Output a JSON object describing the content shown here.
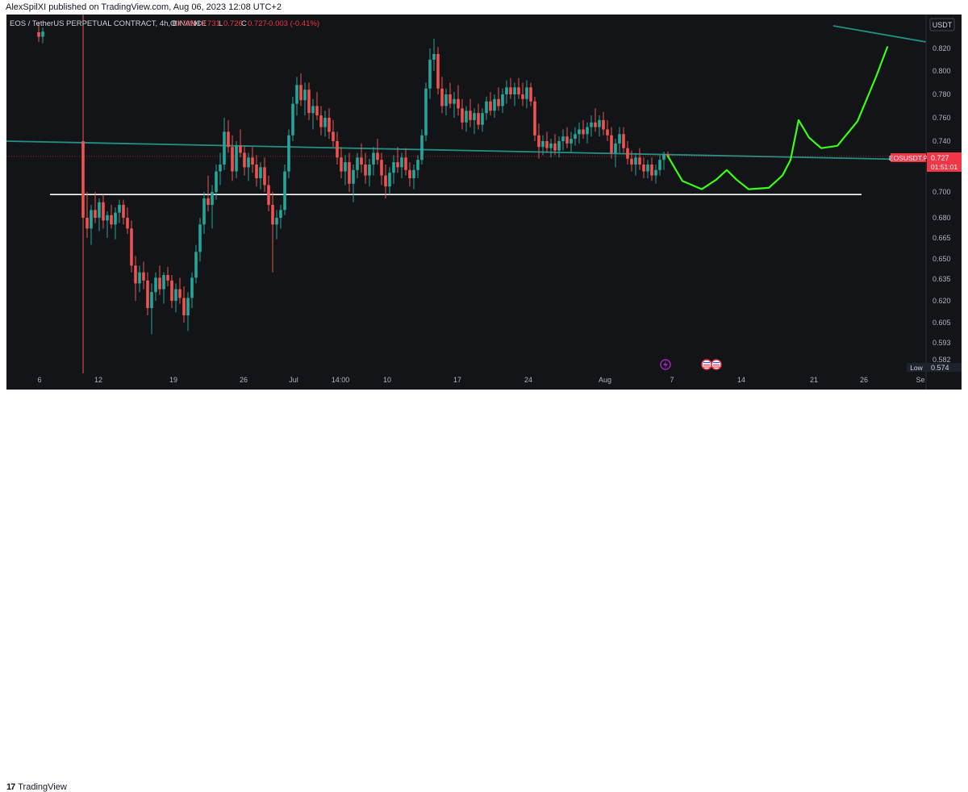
{
  "publish_line": "AlexSpilXI published on TradingView.com, Aug 06, 2023 12:08 UTC+2",
  "footer": {
    "brand": "TradingView",
    "logo_icon": "tradingview-logo-icon"
  },
  "chart_data": {
    "type": "candlestick",
    "symbol_line": {
      "title": "EOS / TetherUS PERPETUAL CONTRACT, 4h, BINANCE",
      "open_label": "O",
      "open": "0.729",
      "high_label": "H",
      "high": "0.731",
      "low_label": "L",
      "low": "0.726",
      "close_label": "C",
      "close": "0.727",
      "change": "-0.003 (-0.41%)"
    },
    "currency_label": "USDT",
    "price_axis_ticks": [
      "0.820",
      "0.800",
      "0.780",
      "0.760",
      "0.740",
      "0.720",
      "0.700",
      "0.680",
      "0.665",
      "0.650",
      "0.635",
      "0.620",
      "0.605",
      "0.593",
      "0.582"
    ],
    "time_axis_ticks": [
      "6",
      "12",
      "19",
      "26",
      "Jul",
      "14:00",
      "10",
      "17",
      "24",
      "Aug",
      "7",
      "14",
      "21",
      "26",
      "Se"
    ],
    "current_price_tag": {
      "symbol": "EOSUSDT.P",
      "price": "0.727",
      "countdown": "01:51:01"
    },
    "low_tag": {
      "label": "Low",
      "value": "0.574"
    },
    "support_level": 0.698,
    "trendline_start": [
      0,
      0.74
    ],
    "trendline_end": [
      1140,
      0.724
    ],
    "upper_trendline_start": [
      1025,
      0.855
    ],
    "upper_trendline_end": [
      1140,
      0.83
    ],
    "projection_path": [
      [
        820,
        0.727
      ],
      [
        838,
        0.708
      ],
      [
        862,
        0.702
      ],
      [
        880,
        0.709
      ],
      [
        893,
        0.716
      ],
      [
        905,
        0.709
      ],
      [
        920,
        0.702
      ],
      [
        945,
        0.703
      ],
      [
        962,
        0.712
      ],
      [
        972,
        0.724
      ],
      [
        982,
        0.758
      ],
      [
        995,
        0.743
      ],
      [
        1010,
        0.734
      ],
      [
        1030,
        0.736
      ],
      [
        1055,
        0.757
      ],
      [
        1078,
        0.795
      ],
      [
        1092,
        0.822
      ]
    ],
    "candles": [
      {
        "x": 40,
        "o": 0.845,
        "h": 0.86,
        "l": 0.83,
        "c": 0.838
      },
      {
        "x": 45,
        "o": 0.838,
        "h": 0.852,
        "l": 0.828,
        "c": 0.846
      },
      {
        "x": 95,
        "o": 0.74,
        "h": 0.9,
        "l": 0.57,
        "c": 0.68
      },
      {
        "x": 100,
        "o": 0.68,
        "h": 0.7,
        "l": 0.665,
        "c": 0.672
      },
      {
        "x": 105,
        "o": 0.672,
        "h": 0.69,
        "l": 0.66,
        "c": 0.686
      },
      {
        "x": 110,
        "o": 0.686,
        "h": 0.7,
        "l": 0.676,
        "c": 0.68
      },
      {
        "x": 115,
        "o": 0.68,
        "h": 0.695,
        "l": 0.67,
        "c": 0.692
      },
      {
        "x": 120,
        "o": 0.692,
        "h": 0.698,
        "l": 0.672,
        "c": 0.678
      },
      {
        "x": 125,
        "o": 0.678,
        "h": 0.685,
        "l": 0.665,
        "c": 0.682
      },
      {
        "x": 130,
        "o": 0.682,
        "h": 0.69,
        "l": 0.672,
        "c": 0.675
      },
      {
        "x": 135,
        "o": 0.675,
        "h": 0.688,
        "l": 0.664,
        "c": 0.684
      },
      {
        "x": 140,
        "o": 0.684,
        "h": 0.694,
        "l": 0.676,
        "c": 0.69
      },
      {
        "x": 145,
        "o": 0.69,
        "h": 0.694,
        "l": 0.675,
        "c": 0.68
      },
      {
        "x": 150,
        "o": 0.68,
        "h": 0.688,
        "l": 0.668,
        "c": 0.672
      },
      {
        "x": 155,
        "o": 0.672,
        "h": 0.678,
        "l": 0.64,
        "c": 0.645
      },
      {
        "x": 160,
        "o": 0.645,
        "h": 0.652,
        "l": 0.62,
        "c": 0.632
      },
      {
        "x": 165,
        "o": 0.632,
        "h": 0.645,
        "l": 0.626,
        "c": 0.64
      },
      {
        "x": 170,
        "o": 0.64,
        "h": 0.648,
        "l": 0.628,
        "c": 0.634
      },
      {
        "x": 175,
        "o": 0.634,
        "h": 0.64,
        "l": 0.61,
        "c": 0.615
      },
      {
        "x": 180,
        "o": 0.615,
        "h": 0.632,
        "l": 0.598,
        "c": 0.626
      },
      {
        "x": 185,
        "o": 0.626,
        "h": 0.64,
        "l": 0.62,
        "c": 0.636
      },
      {
        "x": 190,
        "o": 0.636,
        "h": 0.645,
        "l": 0.624,
        "c": 0.628
      },
      {
        "x": 195,
        "o": 0.628,
        "h": 0.64,
        "l": 0.618,
        "c": 0.638
      },
      {
        "x": 200,
        "o": 0.638,
        "h": 0.644,
        "l": 0.63,
        "c": 0.634
      },
      {
        "x": 205,
        "o": 0.634,
        "h": 0.638,
        "l": 0.615,
        "c": 0.62
      },
      {
        "x": 210,
        "o": 0.62,
        "h": 0.632,
        "l": 0.612,
        "c": 0.628
      },
      {
        "x": 215,
        "o": 0.628,
        "h": 0.636,
        "l": 0.618,
        "c": 0.622
      },
      {
        "x": 220,
        "o": 0.622,
        "h": 0.63,
        "l": 0.605,
        "c": 0.61
      },
      {
        "x": 225,
        "o": 0.61,
        "h": 0.626,
        "l": 0.6,
        "c": 0.622
      },
      {
        "x": 230,
        "o": 0.622,
        "h": 0.64,
        "l": 0.615,
        "c": 0.636
      },
      {
        "x": 235,
        "o": 0.636,
        "h": 0.66,
        "l": 0.632,
        "c": 0.655
      },
      {
        "x": 240,
        "o": 0.655,
        "h": 0.68,
        "l": 0.648,
        "c": 0.675
      },
      {
        "x": 245,
        "o": 0.675,
        "h": 0.7,
        "l": 0.668,
        "c": 0.695
      },
      {
        "x": 250,
        "o": 0.695,
        "h": 0.712,
        "l": 0.685,
        "c": 0.69
      },
      {
        "x": 255,
        "o": 0.69,
        "h": 0.705,
        "l": 0.672,
        "c": 0.7
      },
      {
        "x": 260,
        "o": 0.7,
        "h": 0.72,
        "l": 0.694,
        "c": 0.715
      },
      {
        "x": 265,
        "o": 0.715,
        "h": 0.73,
        "l": 0.705,
        "c": 0.72
      },
      {
        "x": 270,
        "o": 0.72,
        "h": 0.76,
        "l": 0.716,
        "c": 0.748
      },
      {
        "x": 275,
        "o": 0.748,
        "h": 0.758,
        "l": 0.73,
        "c": 0.735
      },
      {
        "x": 280,
        "o": 0.735,
        "h": 0.745,
        "l": 0.708,
        "c": 0.715
      },
      {
        "x": 285,
        "o": 0.715,
        "h": 0.74,
        "l": 0.71,
        "c": 0.736
      },
      {
        "x": 290,
        "o": 0.736,
        "h": 0.75,
        "l": 0.726,
        "c": 0.73
      },
      {
        "x": 295,
        "o": 0.73,
        "h": 0.736,
        "l": 0.712,
        "c": 0.718
      },
      {
        "x": 300,
        "o": 0.718,
        "h": 0.73,
        "l": 0.708,
        "c": 0.726
      },
      {
        "x": 305,
        "o": 0.726,
        "h": 0.735,
        "l": 0.714,
        "c": 0.72
      },
      {
        "x": 310,
        "o": 0.72,
        "h": 0.728,
        "l": 0.704,
        "c": 0.71
      },
      {
        "x": 315,
        "o": 0.71,
        "h": 0.722,
        "l": 0.702,
        "c": 0.718
      },
      {
        "x": 320,
        "o": 0.718,
        "h": 0.726,
        "l": 0.7,
        "c": 0.705
      },
      {
        "x": 325,
        "o": 0.705,
        "h": 0.712,
        "l": 0.685,
        "c": 0.69
      },
      {
        "x": 330,
        "o": 0.69,
        "h": 0.7,
        "l": 0.64,
        "c": 0.675
      },
      {
        "x": 335,
        "o": 0.675,
        "h": 0.686,
        "l": 0.664,
        "c": 0.68
      },
      {
        "x": 340,
        "o": 0.68,
        "h": 0.69,
        "l": 0.672,
        "c": 0.686
      },
      {
        "x": 345,
        "o": 0.686,
        "h": 0.72,
        "l": 0.682,
        "c": 0.715
      },
      {
        "x": 350,
        "o": 0.715,
        "h": 0.75,
        "l": 0.71,
        "c": 0.745
      },
      {
        "x": 355,
        "o": 0.745,
        "h": 0.778,
        "l": 0.74,
        "c": 0.772
      },
      {
        "x": 360,
        "o": 0.772,
        "h": 0.795,
        "l": 0.762,
        "c": 0.788
      },
      {
        "x": 365,
        "o": 0.788,
        "h": 0.798,
        "l": 0.77,
        "c": 0.775
      },
      {
        "x": 370,
        "o": 0.775,
        "h": 0.79,
        "l": 0.762,
        "c": 0.784
      },
      {
        "x": 375,
        "o": 0.784,
        "h": 0.79,
        "l": 0.758,
        "c": 0.764
      },
      {
        "x": 380,
        "o": 0.764,
        "h": 0.776,
        "l": 0.75,
        "c": 0.77
      },
      {
        "x": 385,
        "o": 0.77,
        "h": 0.782,
        "l": 0.758,
        "c": 0.762
      },
      {
        "x": 390,
        "o": 0.762,
        "h": 0.77,
        "l": 0.745,
        "c": 0.752
      },
      {
        "x": 395,
        "o": 0.752,
        "h": 0.766,
        "l": 0.744,
        "c": 0.76
      },
      {
        "x": 400,
        "o": 0.76,
        "h": 0.768,
        "l": 0.742,
        "c": 0.748
      },
      {
        "x": 405,
        "o": 0.748,
        "h": 0.758,
        "l": 0.735,
        "c": 0.74
      },
      {
        "x": 410,
        "o": 0.74,
        "h": 0.748,
        "l": 0.72,
        "c": 0.726
      },
      {
        "x": 415,
        "o": 0.726,
        "h": 0.735,
        "l": 0.71,
        "c": 0.715
      },
      {
        "x": 420,
        "o": 0.715,
        "h": 0.728,
        "l": 0.705,
        "c": 0.722
      },
      {
        "x": 425,
        "o": 0.722,
        "h": 0.73,
        "l": 0.7,
        "c": 0.706
      },
      {
        "x": 430,
        "o": 0.706,
        "h": 0.72,
        "l": 0.692,
        "c": 0.716
      },
      {
        "x": 435,
        "o": 0.716,
        "h": 0.73,
        "l": 0.71,
        "c": 0.726
      },
      {
        "x": 440,
        "o": 0.726,
        "h": 0.738,
        "l": 0.714,
        "c": 0.72
      },
      {
        "x": 445,
        "o": 0.72,
        "h": 0.73,
        "l": 0.706,
        "c": 0.712
      },
      {
        "x": 450,
        "o": 0.712,
        "h": 0.725,
        "l": 0.704,
        "c": 0.72
      },
      {
        "x": 455,
        "o": 0.72,
        "h": 0.735,
        "l": 0.712,
        "c": 0.73
      },
      {
        "x": 460,
        "o": 0.73,
        "h": 0.742,
        "l": 0.72,
        "c": 0.724
      },
      {
        "x": 465,
        "o": 0.724,
        "h": 0.73,
        "l": 0.705,
        "c": 0.712
      },
      {
        "x": 470,
        "o": 0.712,
        "h": 0.72,
        "l": 0.695,
        "c": 0.704
      },
      {
        "x": 475,
        "o": 0.704,
        "h": 0.718,
        "l": 0.698,
        "c": 0.714
      },
      {
        "x": 480,
        "o": 0.714,
        "h": 0.728,
        "l": 0.706,
        "c": 0.722
      },
      {
        "x": 485,
        "o": 0.722,
        "h": 0.735,
        "l": 0.714,
        "c": 0.718
      },
      {
        "x": 490,
        "o": 0.718,
        "h": 0.73,
        "l": 0.71,
        "c": 0.726
      },
      {
        "x": 495,
        "o": 0.726,
        "h": 0.734,
        "l": 0.712,
        "c": 0.716
      },
      {
        "x": 500,
        "o": 0.716,
        "h": 0.722,
        "l": 0.704,
        "c": 0.71
      },
      {
        "x": 505,
        "o": 0.71,
        "h": 0.72,
        "l": 0.702,
        "c": 0.716
      },
      {
        "x": 510,
        "o": 0.716,
        "h": 0.728,
        "l": 0.71,
        "c": 0.724
      },
      {
        "x": 515,
        "o": 0.724,
        "h": 0.75,
        "l": 0.72,
        "c": 0.745
      },
      {
        "x": 520,
        "o": 0.745,
        "h": 0.79,
        "l": 0.74,
        "c": 0.785
      },
      {
        "x": 525,
        "o": 0.785,
        "h": 0.82,
        "l": 0.776,
        "c": 0.81
      },
      {
        "x": 530,
        "o": 0.81,
        "h": 0.835,
        "l": 0.8,
        "c": 0.815
      },
      {
        "x": 535,
        "o": 0.815,
        "h": 0.822,
        "l": 0.78,
        "c": 0.785
      },
      {
        "x": 540,
        "o": 0.785,
        "h": 0.795,
        "l": 0.764,
        "c": 0.77
      },
      {
        "x": 545,
        "o": 0.77,
        "h": 0.785,
        "l": 0.762,
        "c": 0.78
      },
      {
        "x": 550,
        "o": 0.78,
        "h": 0.79,
        "l": 0.768,
        "c": 0.772
      },
      {
        "x": 555,
        "o": 0.772,
        "h": 0.782,
        "l": 0.76,
        "c": 0.776
      },
      {
        "x": 560,
        "o": 0.776,
        "h": 0.788,
        "l": 0.762,
        "c": 0.768
      },
      {
        "x": 565,
        "o": 0.768,
        "h": 0.776,
        "l": 0.75,
        "c": 0.756
      },
      {
        "x": 570,
        "o": 0.756,
        "h": 0.77,
        "l": 0.748,
        "c": 0.766
      },
      {
        "x": 575,
        "o": 0.766,
        "h": 0.776,
        "l": 0.752,
        "c": 0.758
      },
      {
        "x": 580,
        "o": 0.758,
        "h": 0.768,
        "l": 0.746,
        "c": 0.764
      },
      {
        "x": 585,
        "o": 0.764,
        "h": 0.772,
        "l": 0.75,
        "c": 0.754
      },
      {
        "x": 590,
        "o": 0.754,
        "h": 0.768,
        "l": 0.748,
        "c": 0.764
      },
      {
        "x": 595,
        "o": 0.764,
        "h": 0.778,
        "l": 0.758,
        "c": 0.774
      },
      {
        "x": 600,
        "o": 0.774,
        "h": 0.782,
        "l": 0.762,
        "c": 0.766
      },
      {
        "x": 605,
        "o": 0.766,
        "h": 0.78,
        "l": 0.76,
        "c": 0.776
      },
      {
        "x": 610,
        "o": 0.776,
        "h": 0.786,
        "l": 0.766,
        "c": 0.77
      },
      {
        "x": 615,
        "o": 0.77,
        "h": 0.785,
        "l": 0.764,
        "c": 0.78
      },
      {
        "x": 620,
        "o": 0.78,
        "h": 0.792,
        "l": 0.772,
        "c": 0.786
      },
      {
        "x": 625,
        "o": 0.786,
        "h": 0.794,
        "l": 0.776,
        "c": 0.78
      },
      {
        "x": 630,
        "o": 0.78,
        "h": 0.79,
        "l": 0.77,
        "c": 0.786
      },
      {
        "x": 635,
        "o": 0.786,
        "h": 0.794,
        "l": 0.776,
        "c": 0.78
      },
      {
        "x": 640,
        "o": 0.78,
        "h": 0.79,
        "l": 0.77,
        "c": 0.776
      },
      {
        "x": 645,
        "o": 0.776,
        "h": 0.792,
        "l": 0.768,
        "c": 0.786
      },
      {
        "x": 650,
        "o": 0.786,
        "h": 0.79,
        "l": 0.77,
        "c": 0.774
      },
      {
        "x": 655,
        "o": 0.774,
        "h": 0.778,
        "l": 0.74,
        "c": 0.745
      },
      {
        "x": 660,
        "o": 0.745,
        "h": 0.755,
        "l": 0.725,
        "c": 0.735
      },
      {
        "x": 665,
        "o": 0.735,
        "h": 0.745,
        "l": 0.728,
        "c": 0.74
      },
      {
        "x": 670,
        "o": 0.74,
        "h": 0.748,
        "l": 0.73,
        "c": 0.734
      },
      {
        "x": 675,
        "o": 0.734,
        "h": 0.742,
        "l": 0.726,
        "c": 0.738
      },
      {
        "x": 680,
        "o": 0.738,
        "h": 0.746,
        "l": 0.728,
        "c": 0.732
      },
      {
        "x": 685,
        "o": 0.732,
        "h": 0.744,
        "l": 0.726,
        "c": 0.74
      },
      {
        "x": 690,
        "o": 0.74,
        "h": 0.75,
        "l": 0.732,
        "c": 0.744
      },
      {
        "x": 695,
        "o": 0.744,
        "h": 0.752,
        "l": 0.734,
        "c": 0.738
      },
      {
        "x": 700,
        "o": 0.738,
        "h": 0.748,
        "l": 0.73,
        "c": 0.742
      },
      {
        "x": 705,
        "o": 0.742,
        "h": 0.752,
        "l": 0.736,
        "c": 0.746
      },
      {
        "x": 710,
        "o": 0.746,
        "h": 0.756,
        "l": 0.738,
        "c": 0.75
      },
      {
        "x": 715,
        "o": 0.75,
        "h": 0.758,
        "l": 0.742,
        "c": 0.746
      },
      {
        "x": 720,
        "o": 0.746,
        "h": 0.756,
        "l": 0.738,
        "c": 0.752
      },
      {
        "x": 725,
        "o": 0.752,
        "h": 0.762,
        "l": 0.744,
        "c": 0.756
      },
      {
        "x": 730,
        "o": 0.756,
        "h": 0.768,
        "l": 0.748,
        "c": 0.752
      },
      {
        "x": 735,
        "o": 0.752,
        "h": 0.762,
        "l": 0.744,
        "c": 0.758
      },
      {
        "x": 740,
        "o": 0.758,
        "h": 0.765,
        "l": 0.745,
        "c": 0.75
      },
      {
        "x": 745,
        "o": 0.75,
        "h": 0.758,
        "l": 0.74,
        "c": 0.745
      },
      {
        "x": 750,
        "o": 0.745,
        "h": 0.752,
        "l": 0.725,
        "c": 0.73
      },
      {
        "x": 755,
        "o": 0.73,
        "h": 0.742,
        "l": 0.718,
        "c": 0.738
      },
      {
        "x": 760,
        "o": 0.738,
        "h": 0.752,
        "l": 0.73,
        "c": 0.746
      },
      {
        "x": 765,
        "o": 0.746,
        "h": 0.752,
        "l": 0.73,
        "c": 0.734
      },
      {
        "x": 770,
        "o": 0.734,
        "h": 0.74,
        "l": 0.72,
        "c": 0.725
      },
      {
        "x": 775,
        "o": 0.725,
        "h": 0.732,
        "l": 0.715,
        "c": 0.72
      },
      {
        "x": 780,
        "o": 0.72,
        "h": 0.73,
        "l": 0.712,
        "c": 0.726
      },
      {
        "x": 785,
        "o": 0.726,
        "h": 0.734,
        "l": 0.716,
        "c": 0.72
      },
      {
        "x": 790,
        "o": 0.72,
        "h": 0.726,
        "l": 0.71,
        "c": 0.715
      },
      {
        "x": 795,
        "o": 0.715,
        "h": 0.724,
        "l": 0.71,
        "c": 0.72
      },
      {
        "x": 800,
        "o": 0.72,
        "h": 0.726,
        "l": 0.708,
        "c": 0.712
      },
      {
        "x": 805,
        "o": 0.712,
        "h": 0.72,
        "l": 0.706,
        "c": 0.716
      },
      {
        "x": 810,
        "o": 0.716,
        "h": 0.728,
        "l": 0.712,
        "c": 0.724
      },
      {
        "x": 815,
        "o": 0.724,
        "h": 0.731,
        "l": 0.716,
        "c": 0.729
      },
      {
        "x": 820,
        "o": 0.729,
        "h": 0.731,
        "l": 0.726,
        "c": 0.727
      }
    ]
  }
}
